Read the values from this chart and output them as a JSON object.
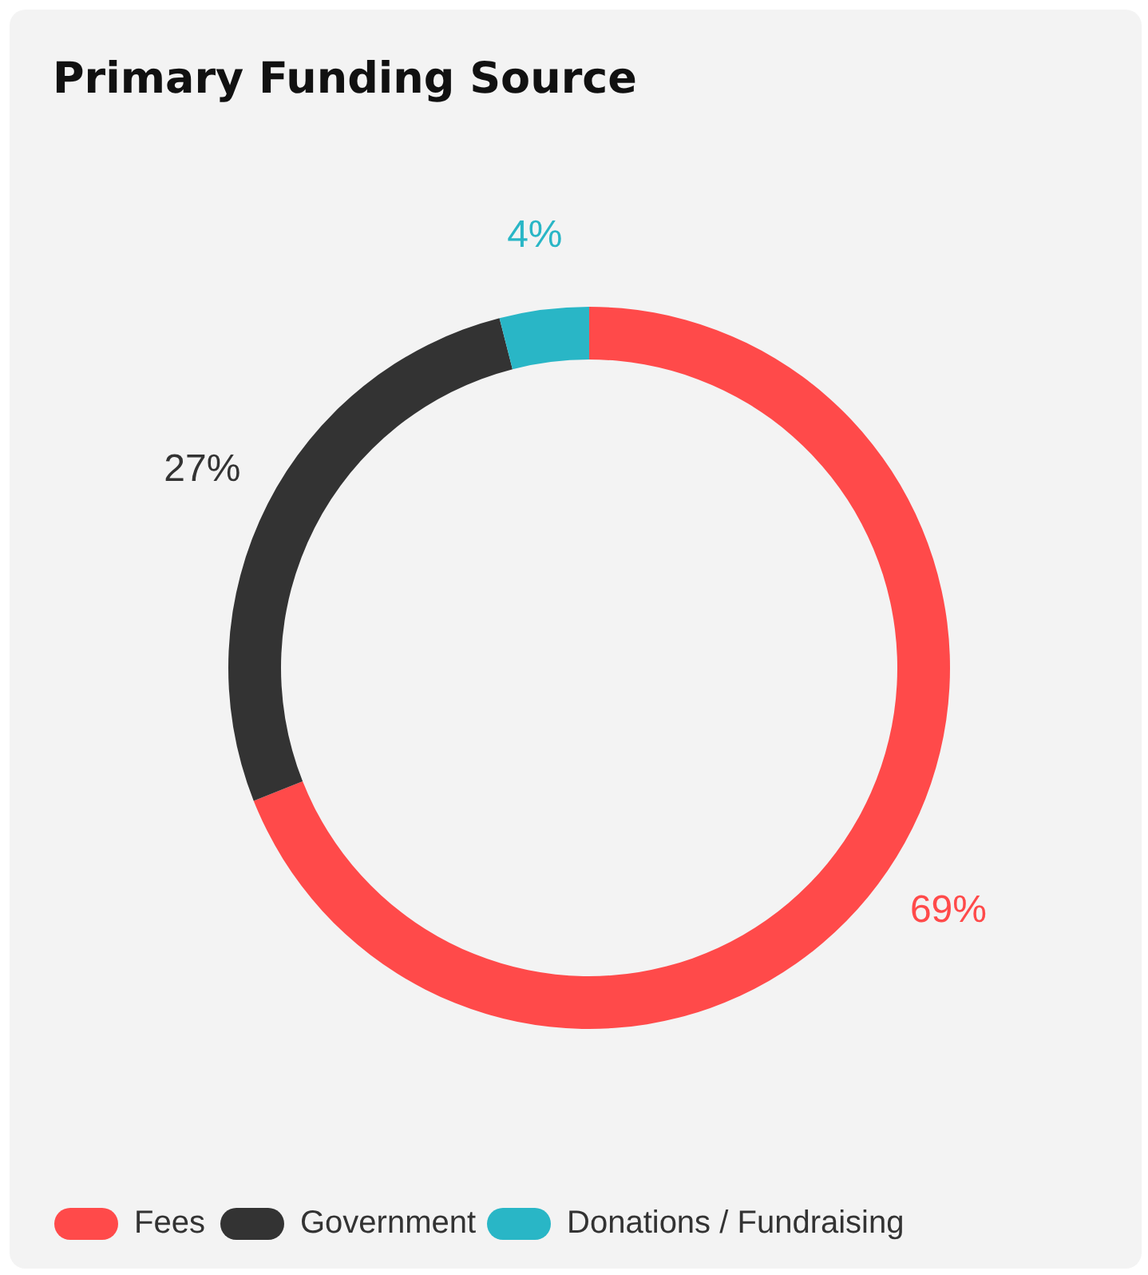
{
  "chart_data": {
    "type": "donut",
    "title": "Primary Funding Source",
    "categories": [
      "Fees",
      "Government",
      "Donations / Fundraising"
    ],
    "values": [
      69,
      27,
      4
    ],
    "colors": [
      "#ff4a4a",
      "#333333",
      "#29b6c6"
    ],
    "value_labels": [
      "69%",
      "27%",
      "4%"
    ],
    "legend": "bottom"
  }
}
